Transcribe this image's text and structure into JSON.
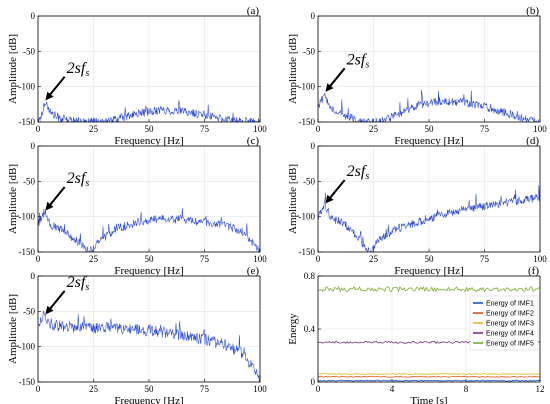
{
  "chart_data": [
    {
      "type": "line",
      "panel": "(a)",
      "xlabel": "Frequency [Hz]",
      "ylabel": "Amplitude [dB]",
      "xlim": [
        0,
        100
      ],
      "ylim": [
        -150,
        0
      ],
      "xticks": [
        "0",
        "25",
        "50",
        "75",
        "100"
      ],
      "yticks": [
        "0",
        "-50",
        "-100",
        "-150"
      ],
      "annotation": {
        "text": "2sf",
        "sub": "s",
        "points_to": [
          3,
          -120
        ]
      },
      "series": [
        {
          "color": "#1f3fd6",
          "profile": [
            [
              0,
              -150
            ],
            [
              2,
              -138
            ],
            [
              3,
              -120
            ],
            [
              6,
              -138
            ],
            [
              10,
              -145
            ],
            [
              20,
              -150
            ],
            [
              30,
              -150
            ],
            [
              35,
              -147
            ],
            [
              45,
              -138
            ],
            [
              55,
              -133
            ],
            [
              65,
              -135
            ],
            [
              75,
              -140
            ],
            [
              85,
              -147
            ],
            [
              95,
              -150
            ],
            [
              100,
              -150
            ]
          ]
        }
      ]
    },
    {
      "type": "line",
      "panel": "(b)",
      "xlabel": "Frequency [Hz]",
      "ylabel": "Amplitude [dB]",
      "xlim": [
        0,
        100
      ],
      "ylim": [
        -150,
        0
      ],
      "xticks": [
        "0",
        "25",
        "50",
        "75",
        "100"
      ],
      "yticks": [
        "0",
        "-50",
        "-100",
        "-150"
      ],
      "annotation": {
        "text": "2sf",
        "sub": "s",
        "points_to": [
          3,
          -108
        ]
      },
      "series": [
        {
          "color": "#1f3fd6",
          "profile": [
            [
              0,
              -128
            ],
            [
              3,
              -112
            ],
            [
              6,
              -130
            ],
            [
              12,
              -140
            ],
            [
              20,
              -150
            ],
            [
              28,
              -150
            ],
            [
              35,
              -140
            ],
            [
              45,
              -127
            ],
            [
              55,
              -120
            ],
            [
              65,
              -122
            ],
            [
              75,
              -128
            ],
            [
              85,
              -137
            ],
            [
              95,
              -148
            ],
            [
              100,
              -150
            ]
          ]
        }
      ]
    },
    {
      "type": "line",
      "panel": "(c)",
      "xlabel": "Frequency [Hz]",
      "ylabel": "Amplitude [dB]",
      "xlim": [
        0,
        100
      ],
      "ylim": [
        -150,
        0
      ],
      "xticks": [
        "0",
        "25",
        "50",
        "75",
        "100"
      ],
      "yticks": [
        "0",
        "-50",
        "-100",
        "-150"
      ],
      "annotation": {
        "text": "2sf",
        "sub": "s",
        "points_to": [
          3,
          -92
        ]
      },
      "series": [
        {
          "color": "#1f3fd6",
          "profile": [
            [
              0,
              -110
            ],
            [
              3,
              -92
            ],
            [
              6,
              -112
            ],
            [
              12,
              -122
            ],
            [
              18,
              -135
            ],
            [
              23,
              -150
            ],
            [
              27,
              -138
            ],
            [
              35,
              -117
            ],
            [
              45,
              -108
            ],
            [
              55,
              -103
            ],
            [
              65,
              -104
            ],
            [
              75,
              -108
            ],
            [
              85,
              -113
            ],
            [
              93,
              -122
            ],
            [
              97,
              -138
            ],
            [
              100,
              -150
            ]
          ]
        }
      ]
    },
    {
      "type": "line",
      "panel": "(d)",
      "xlabel": "Frequency [Hz]",
      "ylabel": "Amplitude [dB]",
      "xlim": [
        0,
        100
      ],
      "ylim": [
        -150,
        0
      ],
      "xticks": [
        "0",
        "25",
        "50",
        "75",
        "100"
      ],
      "yticks": [
        "0",
        "-50",
        "-100",
        "-150"
      ],
      "annotation": {
        "text": "2sf",
        "sub": "s",
        "points_to": [
          3,
          -82
        ]
      },
      "series": [
        {
          "color": "#1f3fd6",
          "profile": [
            [
              0,
              -100
            ],
            [
              3,
              -82
            ],
            [
              6,
              -102
            ],
            [
              12,
              -110
            ],
            [
              18,
              -130
            ],
            [
              23,
              -150
            ],
            [
              27,
              -135
            ],
            [
              35,
              -118
            ],
            [
              45,
              -108
            ],
            [
              55,
              -98
            ],
            [
              65,
              -90
            ],
            [
              75,
              -85
            ],
            [
              85,
              -80
            ],
            [
              95,
              -75
            ],
            [
              100,
              -73
            ]
          ]
        }
      ]
    },
    {
      "type": "line",
      "panel": "(e)",
      "xlabel": "Frequency [Hz]",
      "ylabel": "Amplitude [dB]",
      "xlim": [
        0,
        100
      ],
      "ylim": [
        -150,
        0
      ],
      "xticks": [
        "0",
        "25",
        "50",
        "75",
        "100"
      ],
      "yticks": [
        "0",
        "-50",
        "-100",
        "-150"
      ],
      "annotation": {
        "text": "2sf",
        "sub": "s",
        "points_to": [
          3,
          -55
        ]
      },
      "series": [
        {
          "color": "#1f3fd6",
          "profile": [
            [
              0,
              -68
            ],
            [
              3,
              -55
            ],
            [
              6,
              -70
            ],
            [
              15,
              -72
            ],
            [
              25,
              -73
            ],
            [
              35,
              -74
            ],
            [
              45,
              -76
            ],
            [
              55,
              -79
            ],
            [
              65,
              -84
            ],
            [
              75,
              -90
            ],
            [
              85,
              -98
            ],
            [
              92,
              -110
            ],
            [
              97,
              -130
            ],
            [
              100,
              -150
            ]
          ]
        }
      ]
    },
    {
      "type": "line",
      "panel": "(f)",
      "xlabel": "Time [s]",
      "ylabel": "Energy",
      "xlim": [
        0,
        12
      ],
      "ylim": [
        0,
        0.8
      ],
      "xticks": [
        "0",
        "4",
        "8",
        "12"
      ],
      "yticks": [
        "0",
        "0.4",
        "0.8"
      ],
      "legend_position": "right",
      "series": [
        {
          "name": "Energy of IMF1",
          "color": "#1f4fd0",
          "level": 0.01
        },
        {
          "name": "Energy of IMF2",
          "color": "#d9531e",
          "level": 0.04
        },
        {
          "name": "Energy of IMF3",
          "color": "#e6b020",
          "level": 0.06
        },
        {
          "name": "Energy of IMF4",
          "color": "#7e2f8e",
          "level": 0.3
        },
        {
          "name": "Energy of IMF5",
          "color": "#77ac30",
          "level": 0.7
        }
      ]
    }
  ]
}
